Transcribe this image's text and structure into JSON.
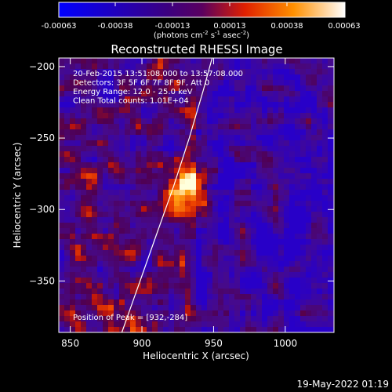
{
  "chart_data": {
    "type": "heatmap",
    "title": "Reconstructed RHESSI Image",
    "xlabel": "Heliocentric X (arcsec)",
    "ylabel": "Heliocentric Y (arcsec)",
    "xlim": [
      842,
      1034
    ],
    "ylim": [
      -386,
      -194
    ],
    "x_ticks": [
      850,
      900,
      950,
      1000
    ],
    "y_ticks": [
      -200,
      -250,
      -300,
      -350
    ],
    "colorbar": {
      "ticks": [
        "-0.00063",
        "-0.00038",
        "-0.00013",
        "0.00013",
        "0.00038",
        "0.00063"
      ],
      "units_label": "(photons cm",
      "units_sup1": "-2",
      "units_mid": " s",
      "units_sup2": "-1",
      "units_end": " asec",
      "units_sup3": "-2",
      "units_close": ")",
      "min": -0.00063,
      "max": 0.00063
    },
    "info_lines": [
      "20-Feb-2015 13:51:08.000 to 13:57:08.000",
      "Detectors: 3F 5F 6F 7F 8F 9F, Att 0",
      "Energy Range: 12.0 - 25.0 keV",
      "Clean     Total counts: 1.01E+04"
    ],
    "peak_label": "Position of Peak = [932,-284]",
    "peak": [
      932,
      -284
    ],
    "limb_curve": [
      [
        886,
        -386
      ],
      [
        898,
        -352
      ],
      [
        910,
        -318
      ],
      [
        922,
        -284
      ],
      [
        933,
        -250
      ],
      [
        943,
        -216
      ],
      [
        949,
        -194
      ]
    ],
    "footer": "19-May-2022 01:19"
  }
}
